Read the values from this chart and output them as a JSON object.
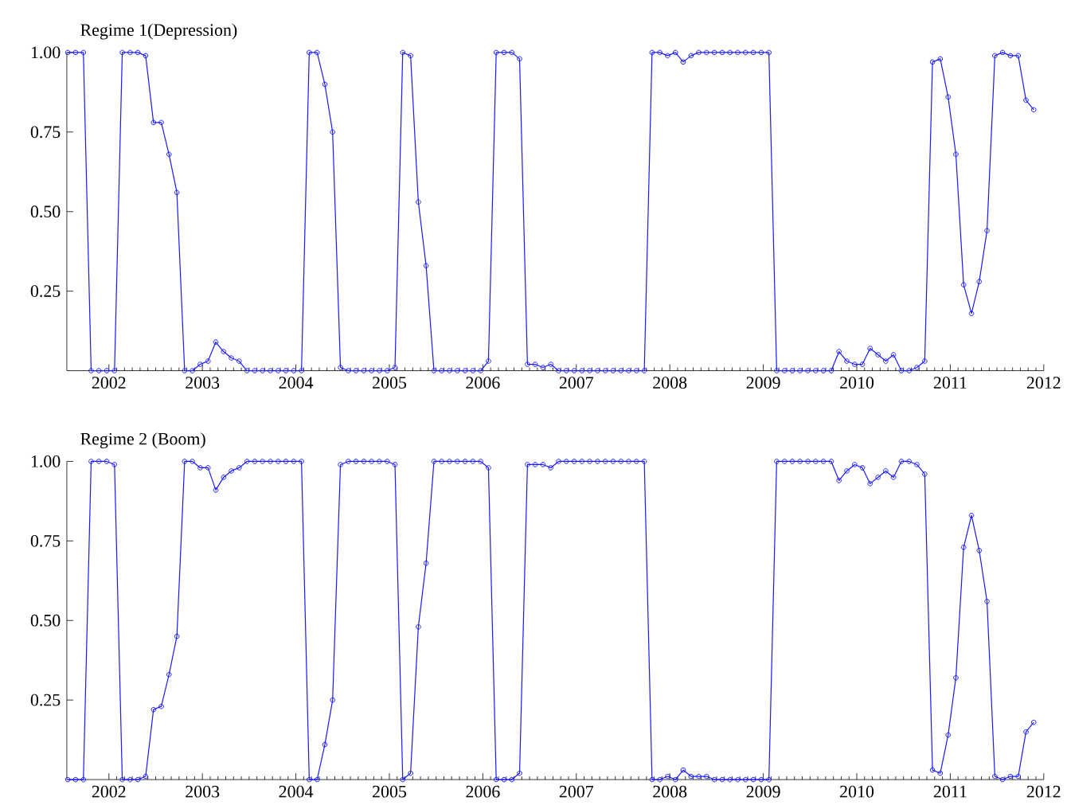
{
  "chart_data": [
    {
      "type": "line",
      "title": "Regime 1(Depression)",
      "color": "#1a1aff",
      "marker": "circle",
      "line_style": "solid",
      "xlim": [
        2001.55,
        2012
      ],
      "ylim": [
        0,
        1.0
      ],
      "xticks": [
        2002,
        2003,
        2004,
        2005,
        2006,
        2007,
        2008,
        2009,
        2010,
        2011,
        2012
      ],
      "yticks": [
        {
          "value": 0.25,
          "label": "0.25"
        },
        {
          "value": 0.5,
          "label": "0.50"
        },
        {
          "value": 0.75,
          "label": "0.75"
        },
        {
          "value": 1.0,
          "label": "1.00"
        }
      ],
      "x": [
        2001.56,
        2001.643,
        2001.727,
        2001.81,
        2001.893,
        2001.977,
        2002.06,
        2002.143,
        2002.227,
        2002.31,
        2002.393,
        2002.477,
        2002.56,
        2002.643,
        2002.727,
        2002.81,
        2002.893,
        2002.977,
        2003.06,
        2003.143,
        2003.227,
        2003.31,
        2003.393,
        2003.477,
        2003.56,
        2003.643,
        2003.727,
        2003.81,
        2003.893,
        2003.977,
        2004.06,
        2004.143,
        2004.227,
        2004.31,
        2004.393,
        2004.477,
        2004.56,
        2004.643,
        2004.727,
        2004.81,
        2004.893,
        2004.977,
        2005.06,
        2005.143,
        2005.227,
        2005.31,
        2005.393,
        2005.477,
        2005.56,
        2005.643,
        2005.727,
        2005.81,
        2005.893,
        2005.977,
        2006.06,
        2006.143,
        2006.227,
        2006.31,
        2006.393,
        2006.477,
        2006.56,
        2006.643,
        2006.727,
        2006.81,
        2006.893,
        2006.977,
        2007.06,
        2007.143,
        2007.227,
        2007.31,
        2007.393,
        2007.477,
        2007.56,
        2007.643,
        2007.727,
        2007.81,
        2007.893,
        2007.977,
        2008.06,
        2008.143,
        2008.227,
        2008.31,
        2008.393,
        2008.477,
        2008.56,
        2008.643,
        2008.727,
        2008.81,
        2008.893,
        2008.977,
        2009.06,
        2009.143,
        2009.227,
        2009.31,
        2009.393,
        2009.477,
        2009.56,
        2009.643,
        2009.727,
        2009.81,
        2009.893,
        2009.977,
        2010.06,
        2010.143,
        2010.227,
        2010.31,
        2010.393,
        2010.477,
        2010.56,
        2010.643,
        2010.727,
        2010.81,
        2010.893,
        2010.977,
        2011.06,
        2011.143,
        2011.227,
        2011.31,
        2011.393,
        2011.477,
        2011.56,
        2011.643,
        2011.727,
        2011.81,
        2011.893
      ],
      "values": [
        1,
        1,
        1,
        0,
        0,
        0,
        0,
        1,
        1,
        1,
        0.99,
        0.78,
        0.78,
        0.68,
        0.56,
        0,
        0,
        0.02,
        0.03,
        0.09,
        0.06,
        0.04,
        0.03,
        0,
        0,
        0,
        0,
        0,
        0,
        0,
        0,
        1,
        1,
        0.9,
        0.75,
        0.01,
        0,
        0,
        0,
        0,
        0,
        0,
        0.01,
        1,
        0.99,
        0.53,
        0.33,
        0,
        0,
        0,
        0,
        0,
        0,
        0,
        0.03,
        1,
        1,
        1,
        0.98,
        0.02,
        0.02,
        0.01,
        0.02,
        0,
        0,
        0,
        0,
        0,
        0,
        0,
        0,
        0,
        0,
        0,
        0,
        1,
        1,
        0.99,
        1,
        0.97,
        0.99,
        1,
        1,
        1,
        1,
        1,
        1,
        1,
        1,
        1,
        1,
        0,
        0,
        0,
        0,
        0,
        0,
        0,
        0,
        0.06,
        0.03,
        0.02,
        0.02,
        0.07,
        0.05,
        0.03,
        0.05,
        0,
        0,
        0.01,
        0.03,
        0.97,
        0.98,
        0.86,
        0.68,
        0.27,
        0.18,
        0.28,
        0.44,
        0.99,
        1,
        0.99,
        0.99,
        0.85,
        0.82
      ]
    },
    {
      "type": "line",
      "title": "Regime 2 (Boom)",
      "color": "#1a1aff",
      "marker": "circle",
      "line_style": "solid",
      "xlim": [
        2001.55,
        2012
      ],
      "ylim": [
        0,
        1.0
      ],
      "xticks": [
        2002,
        2003,
        2004,
        2005,
        2006,
        2007,
        2008,
        2009,
        2010,
        2011,
        2012
      ],
      "yticks": [
        {
          "value": 0.25,
          "label": "0.25"
        },
        {
          "value": 0.5,
          "label": "0.50"
        },
        {
          "value": 0.75,
          "label": "0.75"
        },
        {
          "value": 1.0,
          "label": "1.00"
        }
      ],
      "x": [
        2001.56,
        2001.643,
        2001.727,
        2001.81,
        2001.893,
        2001.977,
        2002.06,
        2002.143,
        2002.227,
        2002.31,
        2002.393,
        2002.477,
        2002.56,
        2002.643,
        2002.727,
        2002.81,
        2002.893,
        2002.977,
        2003.06,
        2003.143,
        2003.227,
        2003.31,
        2003.393,
        2003.477,
        2003.56,
        2003.643,
        2003.727,
        2003.81,
        2003.893,
        2003.977,
        2004.06,
        2004.143,
        2004.227,
        2004.31,
        2004.393,
        2004.477,
        2004.56,
        2004.643,
        2004.727,
        2004.81,
        2004.893,
        2004.977,
        2005.06,
        2005.143,
        2005.227,
        2005.31,
        2005.393,
        2005.477,
        2005.56,
        2005.643,
        2005.727,
        2005.81,
        2005.893,
        2005.977,
        2006.06,
        2006.143,
        2006.227,
        2006.31,
        2006.393,
        2006.477,
        2006.56,
        2006.643,
        2006.727,
        2006.81,
        2006.893,
        2006.977,
        2007.06,
        2007.143,
        2007.227,
        2007.31,
        2007.393,
        2007.477,
        2007.56,
        2007.643,
        2007.727,
        2007.81,
        2007.893,
        2007.977,
        2008.06,
        2008.143,
        2008.227,
        2008.31,
        2008.393,
        2008.477,
        2008.56,
        2008.643,
        2008.727,
        2008.81,
        2008.893,
        2008.977,
        2009.06,
        2009.143,
        2009.227,
        2009.31,
        2009.393,
        2009.477,
        2009.56,
        2009.643,
        2009.727,
        2009.81,
        2009.893,
        2009.977,
        2010.06,
        2010.143,
        2010.227,
        2010.31,
        2010.393,
        2010.477,
        2010.56,
        2010.643,
        2010.727,
        2010.81,
        2010.893,
        2010.977,
        2011.06,
        2011.143,
        2011.227,
        2011.31,
        2011.393,
        2011.477,
        2011.56,
        2011.643,
        2011.727,
        2011.81,
        2011.893
      ],
      "values": [
        0,
        0,
        0,
        1,
        1,
        1,
        0.99,
        0,
        0,
        0,
        0.01,
        0.22,
        0.23,
        0.33,
        0.45,
        1,
        1,
        0.98,
        0.98,
        0.91,
        0.95,
        0.97,
        0.98,
        1,
        1,
        1,
        1,
        1,
        1,
        1,
        1,
        0,
        0,
        0.11,
        0.25,
        0.99,
        1,
        1,
        1,
        1,
        1,
        1,
        0.99,
        0,
        0.02,
        0.48,
        0.68,
        1,
        1,
        1,
        1,
        1,
        1,
        1,
        0.98,
        0,
        0,
        0,
        0.02,
        0.99,
        0.99,
        0.99,
        0.98,
        1,
        1,
        1,
        1,
        1,
        1,
        1,
        1,
        1,
        1,
        1,
        1,
        0,
        0,
        0.01,
        0,
        0.03,
        0.01,
        0.01,
        0.01,
        0,
        0,
        0,
        0,
        0,
        0,
        0,
        0,
        1,
        1,
        1,
        1,
        1,
        1,
        1,
        1,
        0.94,
        0.97,
        0.99,
        0.98,
        0.93,
        0.95,
        0.97,
        0.95,
        1,
        1,
        0.99,
        0.96,
        0.03,
        0.02,
        0.14,
        0.32,
        0.73,
        0.83,
        0.72,
        0.56,
        0.01,
        0,
        0.01,
        0.01,
        0.15,
        0.18
      ]
    }
  ]
}
